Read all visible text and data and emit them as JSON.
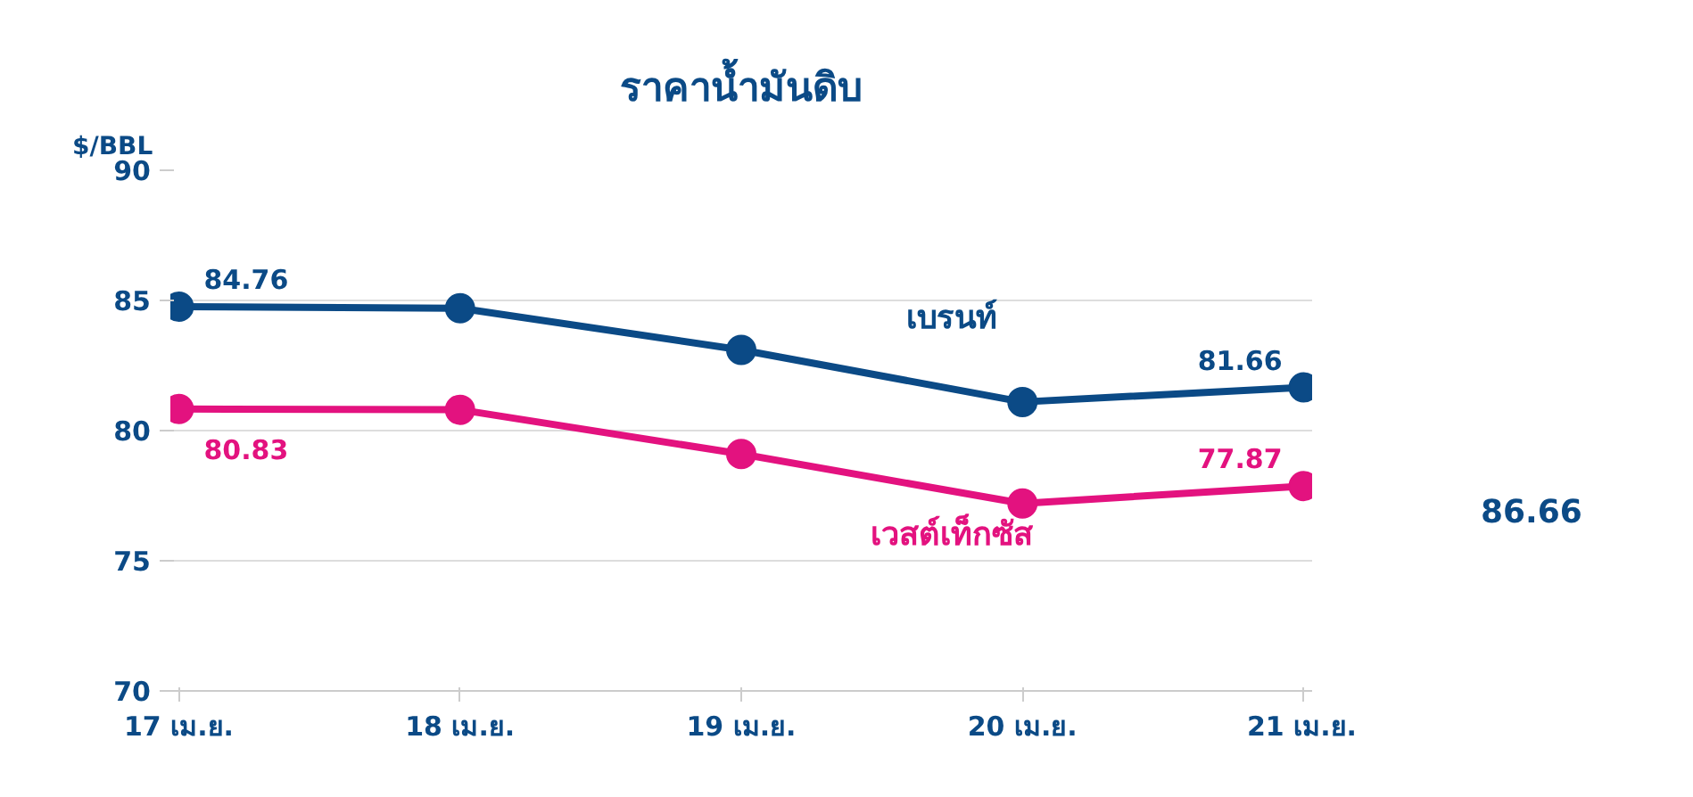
{
  "chart_data": {
    "type": "line",
    "title": "ราคาน้ำมันดิบ",
    "ylabel": "$/BBL",
    "categories": [
      "17 เม.ย.",
      "18 เม.ย.",
      "19 เม.ย.",
      "20 เม.ย.",
      "21 เม.ย."
    ],
    "series": [
      {
        "name": "เบรนท์",
        "color": "#0b4a86",
        "values": [
          84.76,
          84.7,
          83.1,
          81.1,
          81.66
        ],
        "value_labels": [
          "84.76",
          null,
          null,
          null,
          "81.66"
        ]
      },
      {
        "name": "เวสต์เท็กซัส",
        "color": "#e3127f",
        "values": [
          80.83,
          80.8,
          79.1,
          77.2,
          77.87
        ],
        "value_labels": [
          "80.83",
          null,
          null,
          null,
          "77.87"
        ]
      }
    ],
    "ylim": [
      70,
      90
    ],
    "yticks": [
      70,
      75,
      80,
      85,
      90
    ],
    "grid": "y",
    "marker": "circle",
    "line_style": "solid",
    "annotations": [
      "86.66"
    ]
  }
}
